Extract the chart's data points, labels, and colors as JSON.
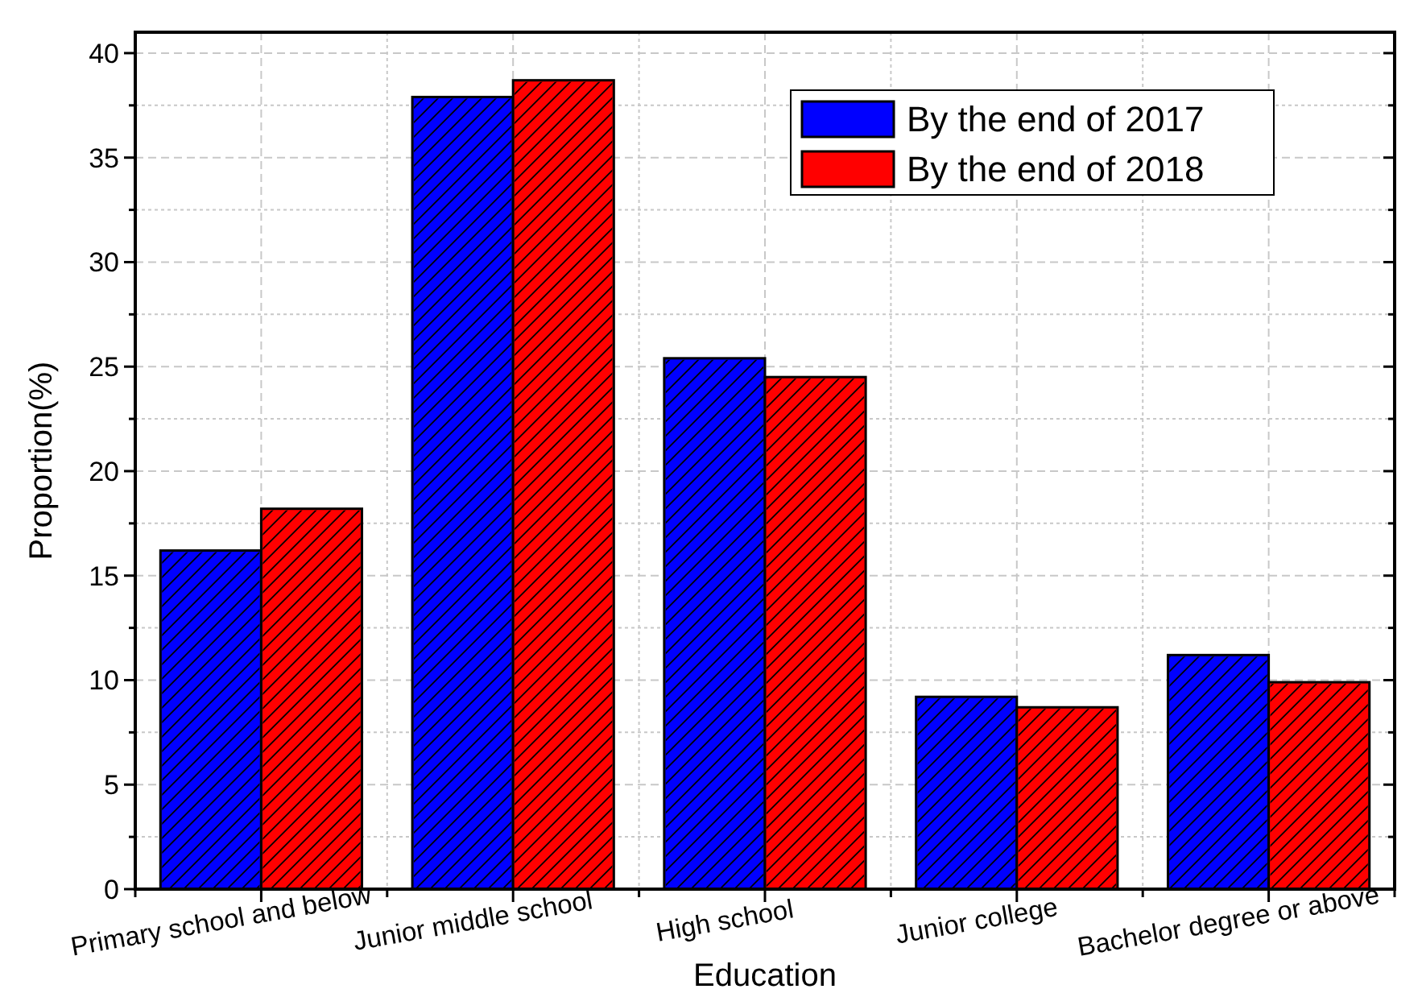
{
  "chart_data": {
    "type": "bar",
    "xlabel": "Education",
    "ylabel": "Proportion(%)",
    "categories": [
      "Primary school and below",
      "Junior middle school",
      "High school",
      "Junior college",
      "Bachelor degree or above"
    ],
    "series": [
      {
        "name": "By the end of 2017",
        "color": "#0000ff",
        "values": [
          16.2,
          37.9,
          25.4,
          9.2,
          11.2
        ]
      },
      {
        "name": "By the end of 2018",
        "color": "#ff0000",
        "values": [
          18.2,
          38.7,
          24.5,
          8.7,
          9.9
        ]
      }
    ],
    "ylim": [
      0,
      41
    ],
    "yticks": [
      0,
      {
        "value": 2.5,
        "label": null
      },
      5,
      {
        "value": 7.5,
        "label": null
      },
      10,
      {
        "value": 12.5,
        "label": null
      },
      15,
      {
        "value": 17.5,
        "label": null
      },
      20,
      {
        "value": 22.5,
        "label": null
      },
      25,
      {
        "value": 27.5,
        "label": null
      },
      30,
      {
        "value": 32.5,
        "label": null
      },
      35,
      {
        "value": 37.5,
        "label": null
      },
      40
    ],
    "grid": true,
    "legend": "top right"
  }
}
